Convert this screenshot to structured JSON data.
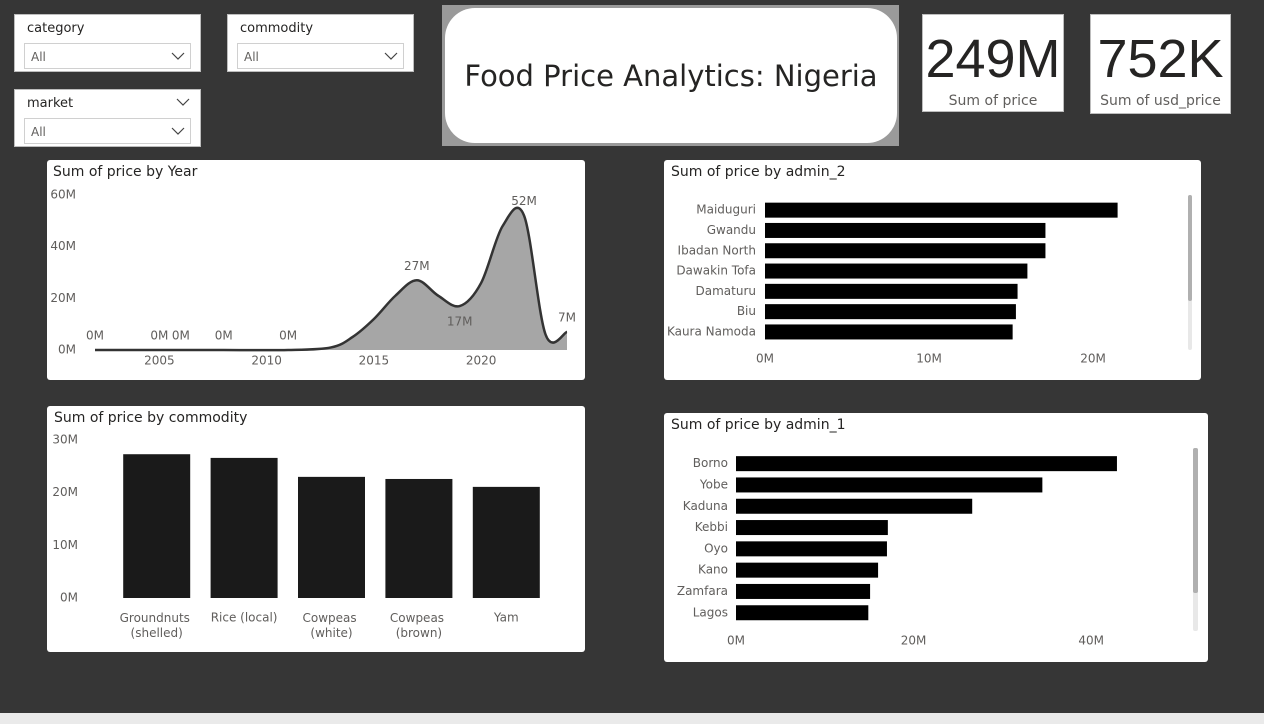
{
  "title": "Food Price Analytics: Nigeria",
  "slicers": [
    {
      "label": "category",
      "value": "All"
    },
    {
      "label": "commodity",
      "value": "All"
    },
    {
      "label": "market",
      "value": "All"
    }
  ],
  "cards": [
    {
      "value": "249M",
      "label": "Sum of price"
    },
    {
      "value": "752K",
      "label": "Sum of usd_price"
    }
  ],
  "chart_data": [
    {
      "type": "line",
      "title": "Sum of price by Year",
      "x": [
        2002,
        2005,
        2006,
        2008,
        2011,
        2013,
        2014,
        2015,
        2016,
        2017,
        2018,
        2019,
        2020,
        2021,
        2022,
        2023,
        2024
      ],
      "values": [
        0,
        0,
        0,
        0,
        0,
        1000000,
        5000000,
        12000000,
        21000000,
        27000000,
        21000000,
        17000000,
        26000000,
        48000000,
        52000000,
        6000000,
        7000000
      ],
      "value_labels": [
        "0M",
        "0M",
        "0M",
        "0M",
        "0M",
        null,
        null,
        null,
        null,
        "27M",
        null,
        "17M",
        null,
        null,
        "52M",
        null,
        "7M"
      ],
      "color": "#333333",
      "fill_color": "#a6a6a6",
      "xlim": [
        2002,
        2024
      ],
      "xticks": [
        2005,
        2010,
        2015,
        2020
      ],
      "ylim": [
        0,
        60000000
      ],
      "yticks": [
        {
          "value": 0,
          "label": "0M"
        },
        {
          "value": 20000000,
          "label": "20M"
        },
        {
          "value": 40000000,
          "label": "40M"
        },
        {
          "value": 60000000,
          "label": "60M"
        }
      ]
    },
    {
      "type": "hbar",
      "title": "Sum of price by admin_2",
      "categories": [
        "Maiduguri",
        "Gwandu",
        "Ibadan North",
        "Dawakin Tofa",
        "Damaturu",
        "Biu",
        "Kaura Namoda"
      ],
      "values": [
        21500000,
        17100000,
        17100000,
        16000000,
        15400000,
        15300000,
        15100000
      ],
      "color": "#000000",
      "xlim": [
        0,
        25000000
      ],
      "xticks": [
        {
          "value": 0,
          "label": "0M"
        },
        {
          "value": 10000000,
          "label": "10M"
        },
        {
          "value": 20000000,
          "label": "20M"
        }
      ]
    },
    {
      "type": "bar",
      "title": "Sum of price by commodity",
      "categories": [
        "Groundnuts (shelled)",
        "Rice (local)",
        "Cowpeas (white)",
        "Cowpeas (brown)",
        "Yam"
      ],
      "values": [
        27300000,
        26600000,
        23000000,
        22600000,
        21100000
      ],
      "color": "#1a1a1a",
      "ylim": [
        0,
        30000000
      ],
      "yticks": [
        {
          "value": 0,
          "label": "0M"
        },
        {
          "value": 10000000,
          "label": "10M"
        },
        {
          "value": 20000000,
          "label": "20M"
        },
        {
          "value": 30000000,
          "label": "30M"
        }
      ]
    },
    {
      "type": "hbar",
      "title": "Sum of price by admin_1",
      "categories": [
        "Borno",
        "Yobe",
        "Kaduna",
        "Kebbi",
        "Oyo",
        "Kano",
        "Zamfara",
        "Lagos"
      ],
      "values": [
        42900000,
        34500000,
        26600000,
        17100000,
        17000000,
        16000000,
        15100000,
        14900000
      ],
      "color": "#000000",
      "xlim": [
        0,
        50000000
      ],
      "xticks": [
        {
          "value": 0,
          "label": "0M"
        },
        {
          "value": 20000000,
          "label": "20M"
        },
        {
          "value": 40000000,
          "label": "40M"
        }
      ]
    }
  ]
}
